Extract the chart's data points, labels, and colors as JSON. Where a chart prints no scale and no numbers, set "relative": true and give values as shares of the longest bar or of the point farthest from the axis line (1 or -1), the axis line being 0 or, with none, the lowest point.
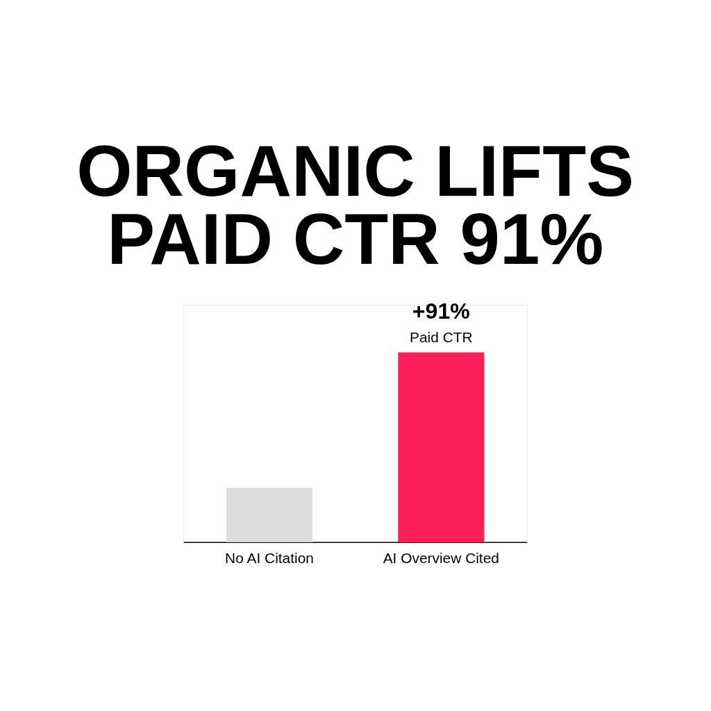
{
  "chart_data": {
    "type": "bar",
    "title": "ORGANIC LIFTS PAID CTR 91%",
    "categories": [
      "No AI Citation",
      "AI Overview Cited"
    ],
    "values": [
      0.286,
      1
    ],
    "colors": [
      "#dcdcdc",
      "#ff1f5a"
    ],
    "relative": true,
    "annotations": [
      {
        "text": "+91%",
        "x": "AI Overview Cited",
        "y": 1
      },
      {
        "text": "Paid CTR",
        "x": "AI Overview Cited",
        "y": 1
      }
    ]
  }
}
